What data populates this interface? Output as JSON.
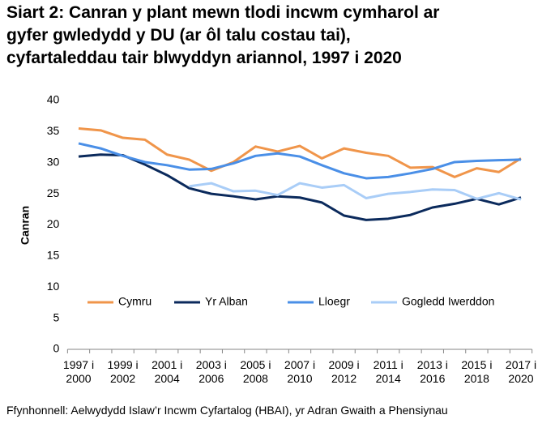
{
  "chart_data": {
    "type": "line",
    "title": [
      "Siart 2: Canran y plant mewn tlodi incwm cymharol ar",
      "gyfer gwledydd y DU (ar ôl talu costau tai),",
      "cyfartaleddau tair blwyddyn ariannol, 1997 i 2020"
    ],
    "y_label": "Canran",
    "source": "Ffynhonnell: Aelwydydd Islaw’r Incwm Cyfartalog (HBAI), yr Adran Gwaith a Phensiynau",
    "categories": [
      "1997 i 2000",
      null,
      "1999 i 2002",
      null,
      "2001 i 2004",
      null,
      "2003 i 2006",
      null,
      "2005 i 2008",
      null,
      "2007 i 2010",
      null,
      "2009 i 2012",
      null,
      "2011 i 2014",
      null,
      "2013 i 2016",
      null,
      "2015 i 2018",
      null,
      "2017 i 2020"
    ],
    "series": [
      {
        "name": "Cymru",
        "color": "#f0954a",
        "values": [
          35.5,
          35.2,
          34.0,
          33.7,
          31.3,
          30.5,
          28.7,
          30.1,
          32.6,
          31.8,
          32.7,
          30.7,
          32.3,
          31.6,
          31.1,
          29.2,
          29.3,
          27.7,
          29.1,
          28.5,
          30.7
        ]
      },
      {
        "name": "Yr Alban",
        "color": "#0b2a5c",
        "values": [
          31.0,
          31.3,
          31.2,
          29.7,
          28.0,
          25.9,
          25.0,
          24.6,
          24.1,
          24.6,
          24.4,
          23.6,
          21.5,
          20.8,
          21.0,
          21.6,
          22.8,
          23.4,
          24.2,
          23.3,
          24.4
        ]
      },
      {
        "name": "Lloegr",
        "color": "#4a8fe7",
        "values": [
          33.1,
          32.3,
          31.1,
          30.1,
          29.6,
          28.9,
          29.0,
          29.9,
          31.1,
          31.5,
          31.0,
          29.6,
          28.3,
          27.5,
          27.7,
          28.3,
          29.0,
          30.1,
          30.3,
          30.4,
          30.5
        ]
      },
      {
        "name": "Gogledd Iwerddon",
        "color": "#a9cdf7",
        "values": [
          null,
          null,
          null,
          null,
          null,
          26.2,
          26.7,
          25.4,
          25.5,
          24.8,
          26.7,
          26.0,
          26.4,
          24.3,
          25.0,
          25.3,
          25.7,
          25.6,
          24.2,
          25.1,
          24.1
        ]
      }
    ],
    "ylim": [
      0,
      40
    ],
    "yticks": [
      0,
      5,
      10,
      15,
      20,
      25,
      30,
      35,
      40
    ],
    "grid": false
  }
}
